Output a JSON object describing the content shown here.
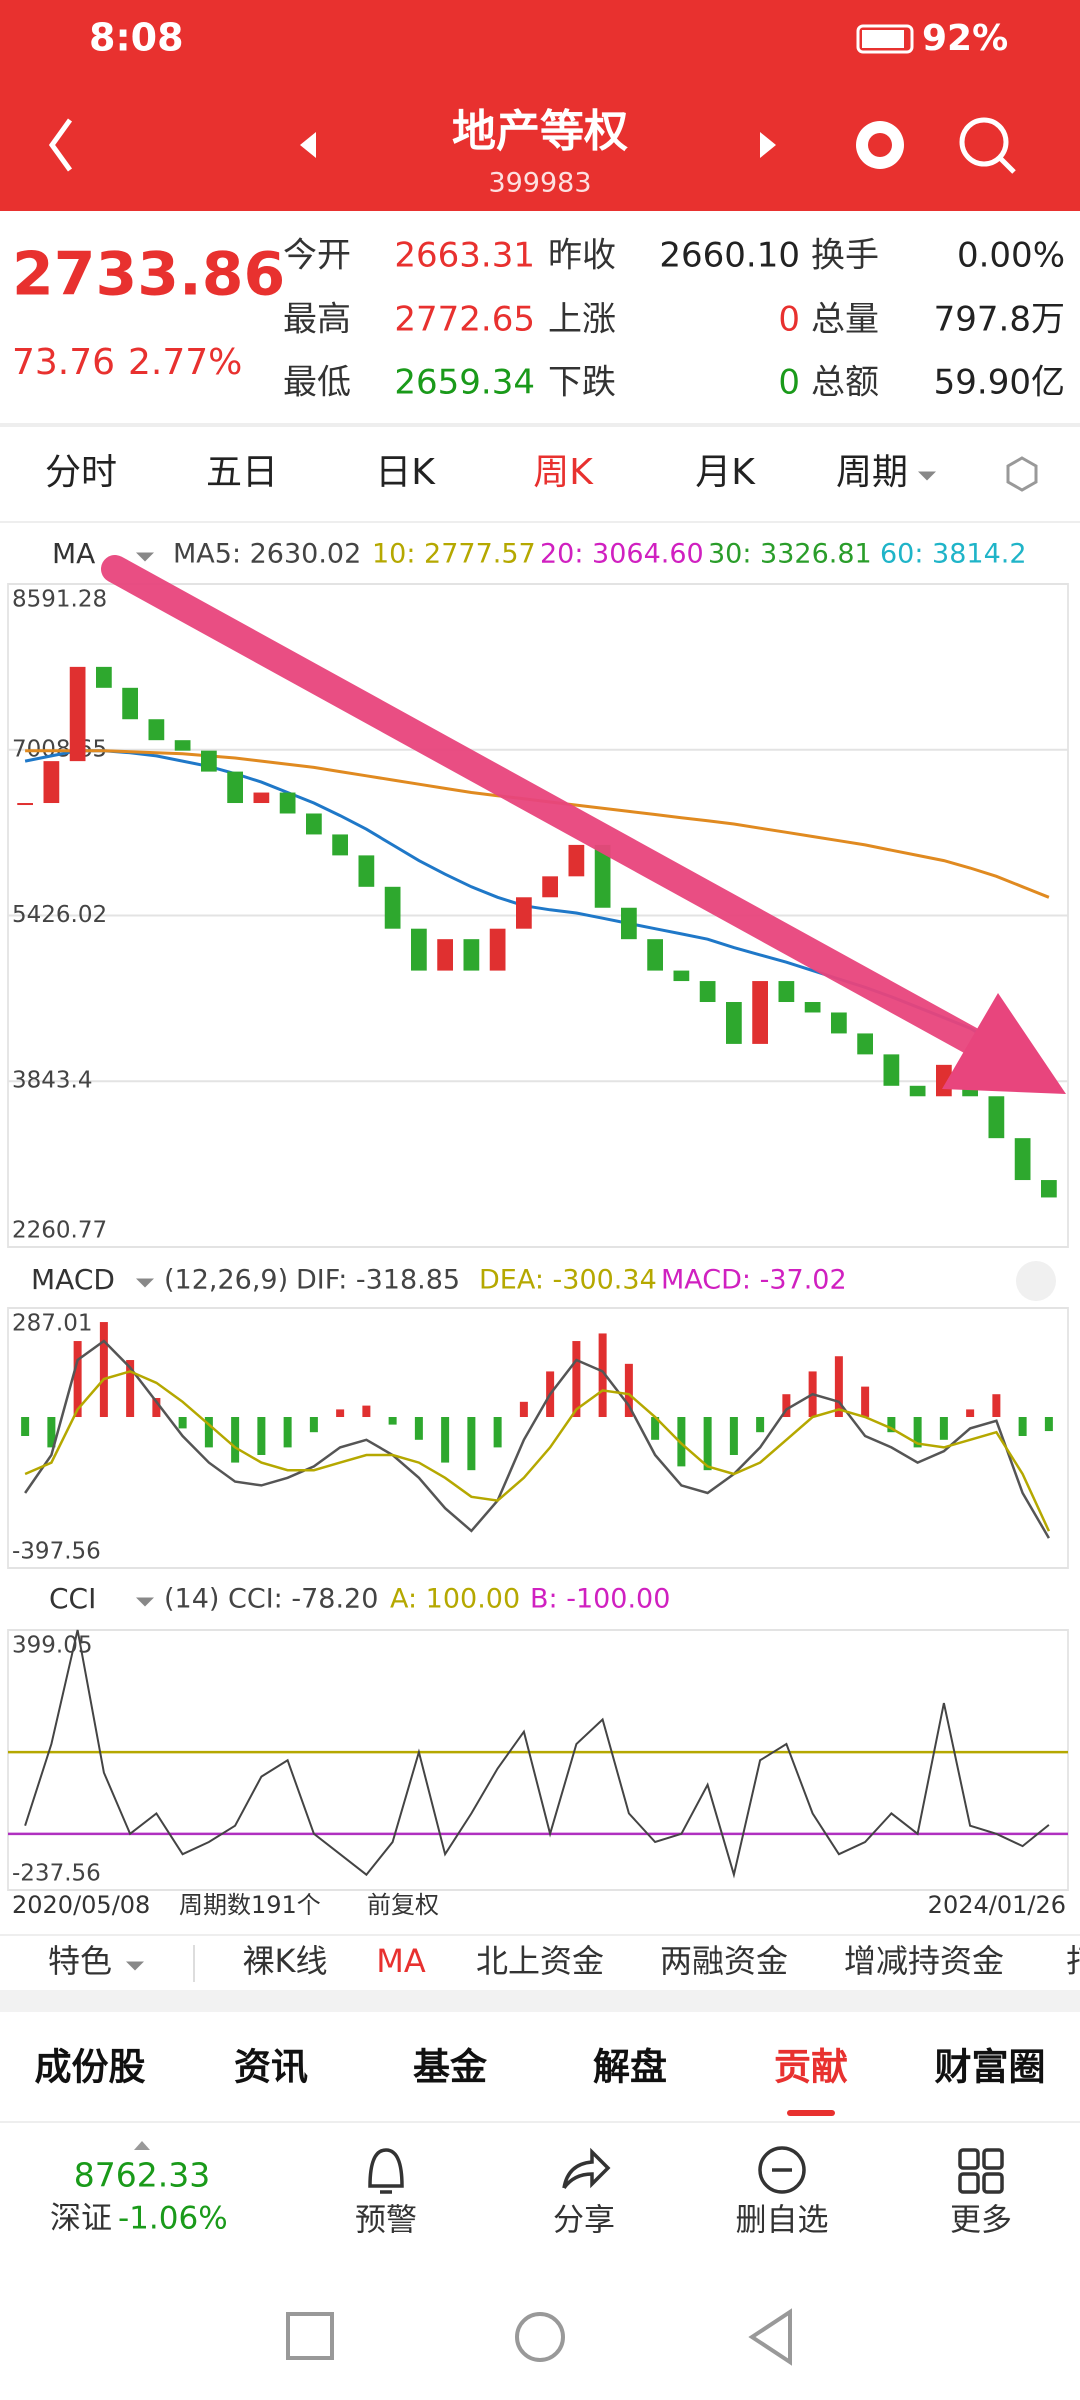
{
  "status_bar": {
    "time": "8:08",
    "battery": "92%"
  },
  "header": {
    "title": "地产等权",
    "code": "399983"
  },
  "quote": {
    "price": "2733.86",
    "change": "73.76",
    "change_pct": "2.77%",
    "rows": [
      [
        {
          "label": "今开",
          "value": "2663.31",
          "color": "#e8312f"
        },
        {
          "label": "昨收",
          "value": "2660.10",
          "color": "#222222"
        },
        {
          "label": "换手",
          "value": "0.00%",
          "color": "#222222"
        }
      ],
      [
        {
          "label": "最高",
          "value": "2772.65",
          "color": "#e8312f"
        },
        {
          "label": "上涨",
          "value": "0",
          "color": "#e8312f"
        },
        {
          "label": "总量",
          "value": "797.8万",
          "color": "#222222"
        }
      ],
      [
        {
          "label": "最低",
          "value": "2659.34",
          "color": "#1a9a1a"
        },
        {
          "label": "下跌",
          "value": "0",
          "color": "#1a9a1a"
        },
        {
          "label": "总额",
          "value": "59.90亿",
          "color": "#222222"
        }
      ]
    ]
  },
  "period_tabs": {
    "items": [
      "分时",
      "五日",
      "日K",
      "周K",
      "月K",
      "周期"
    ],
    "active": 3
  },
  "price_chart": {
    "indicator": "MA",
    "legend": [
      {
        "text": "MA5: 2630.02",
        "color": "#444444"
      },
      {
        "text": "10: 2777.57",
        "color": "#b5a800"
      },
      {
        "text": "20: 3064.60",
        "color": "#d020c0"
      },
      {
        "text": "30: 3326.81",
        "color": "#2a9d2a"
      },
      {
        "text": "60: 3814.2",
        "color": "#1fb4c8"
      }
    ],
    "ylim": [
      2260.77,
      8591.28
    ],
    "yticks": [
      8591.28,
      7008.65,
      5426.02,
      3843.4,
      2260.77
    ],
    "close": [
      6500,
      6900,
      7800,
      7600,
      7300,
      7100,
      7000,
      6800,
      6500,
      6600,
      6400,
      6200,
      6000,
      5700,
      5300,
      4900,
      5200,
      4900,
      5300,
      5600,
      5800,
      6100,
      5500,
      5200,
      4900,
      4800,
      4600,
      4200,
      4800,
      4600,
      4500,
      4300,
      4100,
      3800,
      3700,
      4000,
      3700,
      3300,
      2900,
      2733.86
    ],
    "up_color": "#e03030",
    "down_color": "#2ea82e",
    "ma_lines": [
      {
        "color": "#1f78c8",
        "values": [
          6900,
          6950,
          7000,
          7000,
          6980,
          6950,
          6900,
          6850,
          6780,
          6700,
          6600,
          6500,
          6380,
          6250,
          6100,
          5950,
          5820,
          5700,
          5600,
          5520,
          5480,
          5450,
          5400,
          5350,
          5300,
          5250,
          5200,
          5120,
          5050,
          4980,
          4900,
          4820,
          4740,
          4650,
          4550,
          4450,
          4350,
          4200,
          4000,
          3814.2
        ]
      },
      {
        "color": "#e08a20",
        "values": [
          7000,
          7000,
          7000,
          7000,
          6990,
          6980,
          6970,
          6950,
          6930,
          6900,
          6870,
          6840,
          6800,
          6760,
          6720,
          6680,
          6640,
          6600,
          6570,
          6540,
          6510,
          6480,
          6450,
          6420,
          6390,
          6360,
          6330,
          6300,
          6260,
          6220,
          6180,
          6140,
          6100,
          6050,
          6000,
          5950,
          5880,
          5800,
          5700,
          5600
        ]
      }
    ]
  },
  "dates": {
    "start": "2020/05/08",
    "count": "周期数191个",
    "adjust": "前复权",
    "end": "2024/01/26"
  },
  "macd": {
    "title": "MACD",
    "legend": [
      {
        "text": "(12,26,9)",
        "color": "#444444"
      },
      {
        "text": "DIF: -318.85",
        "color": "#444444"
      },
      {
        "text": "DEA: -300.34",
        "color": "#b5a800"
      },
      {
        "text": "MACD: -37.02",
        "color": "#d020c0"
      }
    ],
    "ylim": [
      -397.56,
      287.01
    ],
    "yticks": [
      287.01,
      -397.56
    ],
    "hist": [
      -50,
      -80,
      200,
      250,
      150,
      50,
      -30,
      -80,
      -120,
      -100,
      -80,
      -40,
      20,
      30,
      -20,
      -60,
      -120,
      -140,
      -80,
      40,
      120,
      200,
      220,
      140,
      -60,
      -130,
      -140,
      -100,
      -40,
      60,
      120,
      160,
      80,
      -40,
      -80,
      -60,
      20,
      60,
      -50,
      -37.02
    ],
    "dif": [
      -200,
      -100,
      150,
      200,
      130,
      40,
      -50,
      -120,
      -170,
      -180,
      -160,
      -130,
      -80,
      -60,
      -100,
      -160,
      -240,
      -300,
      -220,
      -60,
      60,
      150,
      120,
      30,
      -100,
      -180,
      -200,
      -150,
      -80,
      20,
      60,
      40,
      -50,
      -80,
      -120,
      -90,
      -30,
      -10,
      -200,
      -318.85
    ],
    "dea": [
      -150,
      -120,
      20,
      100,
      120,
      90,
      40,
      -20,
      -80,
      -120,
      -140,
      -140,
      -120,
      -100,
      -100,
      -120,
      -160,
      -210,
      -220,
      -160,
      -80,
      20,
      70,
      60,
      0,
      -70,
      -130,
      -150,
      -120,
      -60,
      0,
      20,
      0,
      -30,
      -70,
      -80,
      -60,
      -40,
      -150,
      -300.34
    ],
    "dif_color": "#555555",
    "dea_color": "#b5a800"
  },
  "cci": {
    "title": "CCI",
    "legend": [
      {
        "text": "(14) CCI: -78.20",
        "color": "#444444"
      },
      {
        "text": "A: 100.00",
        "color": "#b5a800"
      },
      {
        "text": "B: -100.00",
        "color": "#d020c0"
      }
    ],
    "ylim": [
      -237.56,
      399.05
    ],
    "yticks": [
      399.05,
      -237.56
    ],
    "levels": [
      {
        "value": 100,
        "color": "#b5a800"
      },
      {
        "value": -100,
        "color": "#b030c0"
      }
    ],
    "values": [
      -80,
      120,
      399.05,
      50,
      -100,
      -50,
      -150,
      -120,
      -80,
      40,
      80,
      -100,
      -150,
      -200,
      -120,
      100,
      -150,
      -50,
      60,
      150,
      -100,
      120,
      180,
      -50,
      -120,
      -100,
      20,
      -200,
      80,
      120,
      -50,
      -150,
      -120,
      -50,
      -100,
      220,
      -80,
      -100,
      -130,
      -78.2
    ],
    "color": "#444444"
  },
  "indicator_tabs": {
    "items": [
      "特色",
      "裸K线",
      "MA",
      "北上资金",
      "两融资金",
      "增减持资金",
      "打"
    ],
    "active": 2
  },
  "info_tabs": {
    "items": [
      "成份股",
      "资讯",
      "基金",
      "解盘",
      "贡献",
      "财富圈"
    ],
    "active": 4
  },
  "footer": {
    "index_value": "8762.33",
    "index_name": "深证",
    "index_change": "-1.06%",
    "actions": [
      "预警",
      "分享",
      "删自选",
      "更多"
    ]
  }
}
